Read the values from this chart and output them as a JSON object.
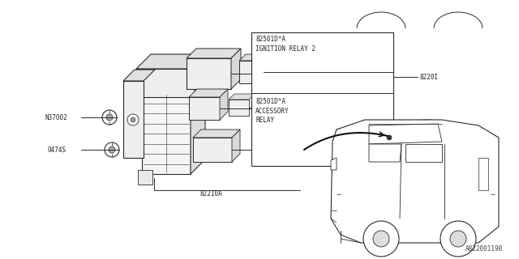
{
  "bg_color": "#ffffff",
  "line_color": "#2a2a2a",
  "fig_width": 6.4,
  "fig_height": 3.2,
  "dpi": 100,
  "watermark": "A822001198",
  "labels": {
    "ignition_relay_code": "82501D*A",
    "ignition_relay_text": "IGNITION RELAY 2",
    "accessory_code": "82501D*A",
    "accessory_text1": "ACCESSORY",
    "accessory_text2": "RELAY",
    "main_box": "82210A",
    "right_label": "8220I",
    "bolt1": "N37002",
    "bolt2": "0474S"
  }
}
